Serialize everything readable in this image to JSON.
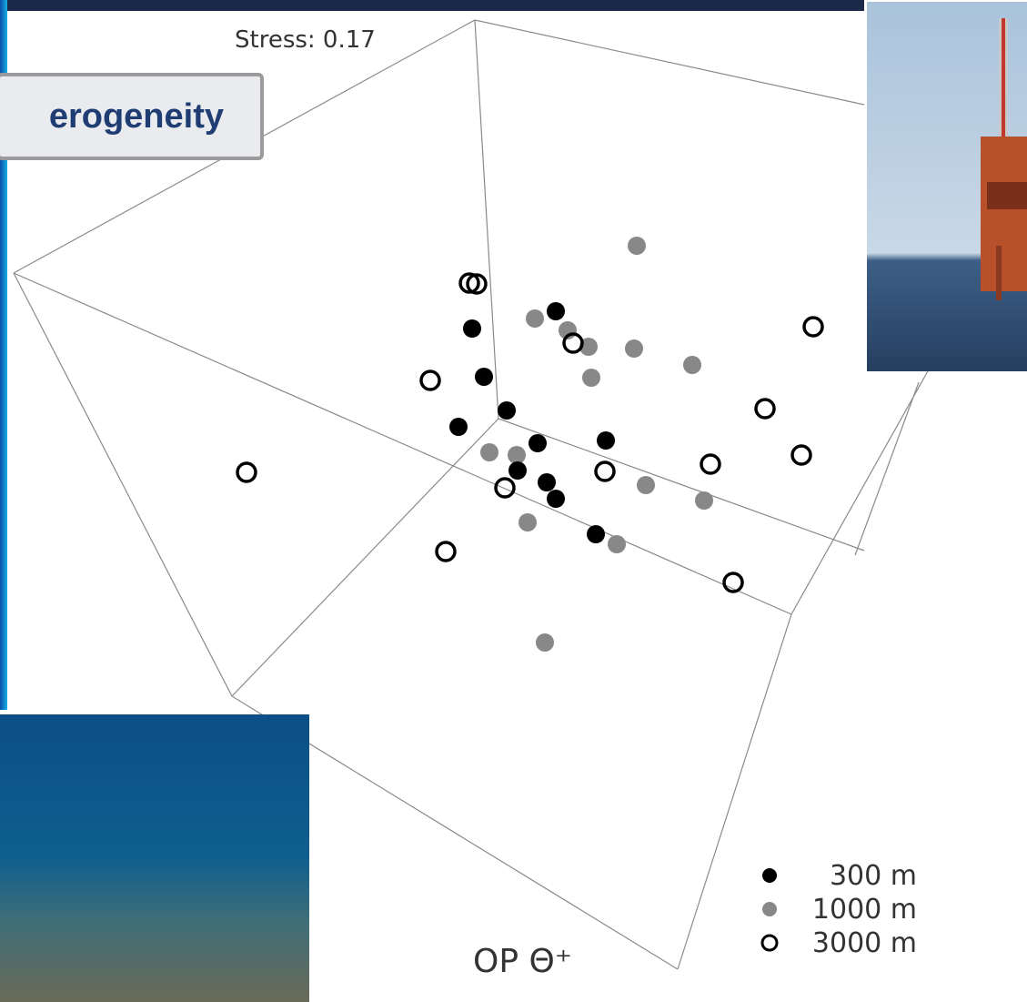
{
  "slide": {
    "heading": "erogeneity",
    "plot": {
      "stress_label": "Stress: 0.17",
      "axis_label": "OP Θ⁺",
      "legend": [
        "300 m",
        "1000 m",
        "3000 m"
      ]
    }
  }
}
